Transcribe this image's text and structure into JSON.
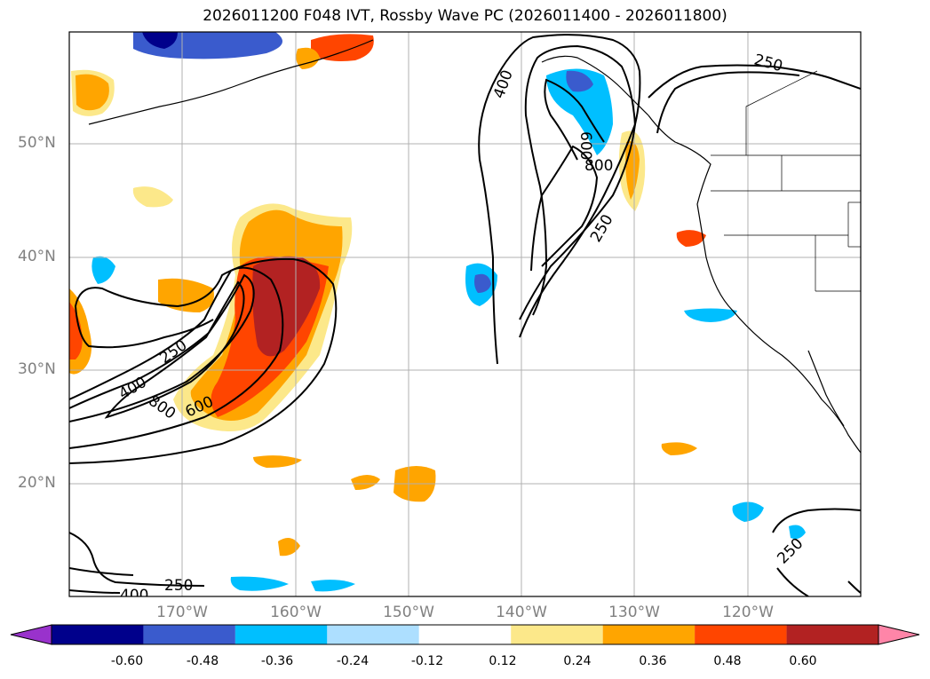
{
  "title": "2026011200 F048 IVT, Rossby Wave PC (2026011400 - 2026011800)",
  "latitude_labels": [
    "50°N",
    "40°N",
    "30°N",
    "20°N"
  ],
  "longitude_labels": [
    "170°W",
    "160°W",
    "150°W",
    "140°W",
    "130°W",
    "120°W"
  ],
  "contour_labels": {
    "west_system": [
      "250",
      "400",
      "800",
      "600"
    ],
    "north_system": [
      "400",
      "600",
      "800",
      "250"
    ],
    "top_right": "250",
    "bottom_left": [
      "250",
      "400"
    ],
    "bottom_right": "250"
  },
  "colorbar": {
    "tick_labels": [
      "-0.60",
      "-0.48",
      "-0.36",
      "-0.24",
      "-0.12",
      "0.12",
      "0.24",
      "0.36",
      "0.48",
      "0.60"
    ],
    "colors": [
      "#9932cc",
      "#00008b",
      "#3a5bcd",
      "#00bfff",
      "#addfff",
      "#ffffff",
      "#fce88a",
      "#ffa500",
      "#ff4500",
      "#b22222",
      "#ff85a8"
    ]
  }
}
